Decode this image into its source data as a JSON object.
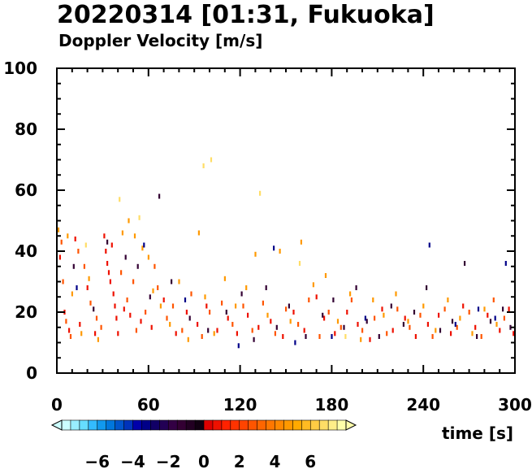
{
  "chart_data": {
    "type": "scatter",
    "title": "20220314 [01:31, Fukuoka]",
    "subtitle": "Doppler Velocity [m/s]",
    "xlabel": "time [s]",
    "ylabel": "",
    "xlim": [
      0,
      300
    ],
    "ylim": [
      0,
      100
    ],
    "xticks": [
      0,
      60,
      120,
      180,
      240,
      300
    ],
    "yticks": [
      0,
      20,
      40,
      60,
      80,
      100
    ],
    "grid": false,
    "colorbar": {
      "label_ticks": [
        "−6",
        "−4",
        "−2",
        "0",
        "2",
        "4",
        "6"
      ],
      "tick_values": [
        -6,
        -4,
        -2,
        0,
        2,
        4,
        6
      ],
      "range": [
        -8,
        8
      ],
      "levels": 32,
      "negative_colors": [
        "#ccffff",
        "#99eeff",
        "#66ddff",
        "#33bbff",
        "#1199ee",
        "#0077dd",
        "#0055cc",
        "#0033bb",
        "#0000aa",
        "#000088",
        "#110066",
        "#220055",
        "#330044",
        "#330033",
        "#220022",
        "#110011"
      ],
      "positive_colors": [
        "#dd0000",
        "#ee1100",
        "#ff2200",
        "#ff3300",
        "#ff4400",
        "#ff5500",
        "#ff6600",
        "#ff7700",
        "#ff8800",
        "#ff9900",
        "#ffaa00",
        "#ffbb22",
        "#ffcc44",
        "#ffdd66",
        "#ffee88",
        "#ffffaa"
      ]
    },
    "series": [
      {
        "velocity_range": "positive, 0 to 2 m/s (red)",
        "points": [
          [
            2,
            38
          ],
          [
            5,
            20
          ],
          [
            8,
            14
          ],
          [
            12,
            44
          ],
          [
            15,
            16
          ],
          [
            20,
            28
          ],
          [
            25,
            13
          ],
          [
            31,
            45
          ],
          [
            32,
            40
          ],
          [
            33,
            36
          ],
          [
            34,
            33
          ],
          [
            35,
            30
          ],
          [
            36,
            42
          ],
          [
            37,
            26
          ],
          [
            38,
            22
          ],
          [
            39,
            18
          ],
          [
            40,
            13
          ],
          [
            44,
            21
          ],
          [
            48,
            19
          ],
          [
            55,
            17
          ],
          [
            62,
            15
          ],
          [
            70,
            24
          ],
          [
            78,
            13
          ],
          [
            85,
            20
          ],
          [
            92,
            16
          ],
          [
            98,
            22
          ],
          [
            105,
            14
          ],
          [
            112,
            18
          ],
          [
            118,
            13
          ],
          [
            125,
            19
          ],
          [
            132,
            15
          ],
          [
            140,
            17
          ],
          [
            148,
            12
          ],
          [
            155,
            20
          ],
          [
            162,
            14
          ],
          [
            170,
            25
          ],
          [
            175,
            18
          ],
          [
            182,
            13
          ],
          [
            190,
            20
          ],
          [
            197,
            16
          ],
          [
            205,
            11
          ],
          [
            213,
            21
          ],
          [
            220,
            14
          ],
          [
            228,
            18
          ],
          [
            235,
            12
          ],
          [
            243,
            16
          ],
          [
            250,
            19
          ],
          [
            258,
            13
          ],
          [
            266,
            22
          ],
          [
            274,
            15
          ],
          [
            282,
            19
          ],
          [
            290,
            14
          ],
          [
            296,
            21
          ],
          [
            299,
            13
          ]
        ]
      },
      {
        "velocity_range": "positive, 2 to 4 m/s (orange-red)",
        "points": [
          [
            3,
            43
          ],
          [
            4,
            30
          ],
          [
            6,
            17
          ],
          [
            9,
            12
          ],
          [
            14,
            40
          ],
          [
            18,
            35
          ],
          [
            22,
            23
          ],
          [
            26,
            18
          ],
          [
            29,
            15
          ],
          [
            42,
            33
          ],
          [
            46,
            24
          ],
          [
            50,
            30
          ],
          [
            52,
            14
          ],
          [
            58,
            20
          ],
          [
            64,
            35
          ],
          [
            66,
            28
          ],
          [
            72,
            18
          ],
          [
            76,
            22
          ],
          [
            82,
            14
          ],
          [
            88,
            26
          ],
          [
            95,
            12
          ],
          [
            100,
            20
          ],
          [
            108,
            23
          ],
          [
            115,
            16
          ],
          [
            122,
            22
          ],
          [
            128,
            14
          ],
          [
            135,
            23
          ],
          [
            143,
            13
          ],
          [
            150,
            21
          ],
          [
            158,
            16
          ],
          [
            165,
            24
          ],
          [
            172,
            12
          ],
          [
            178,
            20
          ],
          [
            186,
            15
          ],
          [
            193,
            24
          ],
          [
            200,
            14
          ],
          [
            208,
            18
          ],
          [
            216,
            13
          ],
          [
            223,
            21
          ],
          [
            231,
            15
          ],
          [
            238,
            19
          ],
          [
            246,
            12
          ],
          [
            254,
            21
          ],
          [
            262,
            15
          ],
          [
            270,
            20
          ],
          [
            278,
            12
          ],
          [
            286,
            24
          ],
          [
            293,
            18
          ]
        ]
      },
      {
        "velocity_range": "positive, 4 to 6 m/s (orange)",
        "points": [
          [
            1,
            47
          ],
          [
            7,
            45
          ],
          [
            10,
            26
          ],
          [
            16,
            13
          ],
          [
            21,
            31
          ],
          [
            27,
            11
          ],
          [
            43,
            46
          ],
          [
            47,
            50
          ],
          [
            51,
            45
          ],
          [
            56,
            41
          ],
          [
            60,
            38
          ],
          [
            63,
            27
          ],
          [
            68,
            22
          ],
          [
            74,
            16
          ],
          [
            80,
            30
          ],
          [
            86,
            11
          ],
          [
            93,
            46
          ],
          [
            97,
            25
          ],
          [
            103,
            13
          ],
          [
            110,
            31
          ],
          [
            117,
            22
          ],
          [
            124,
            28
          ],
          [
            130,
            39
          ],
          [
            138,
            19
          ],
          [
            146,
            40
          ],
          [
            153,
            17
          ],
          [
            160,
            43
          ],
          [
            168,
            29
          ],
          [
            176,
            32
          ],
          [
            184,
            17
          ],
          [
            192,
            26
          ],
          [
            199,
            11
          ],
          [
            207,
            24
          ],
          [
            214,
            19
          ],
          [
            222,
            26
          ],
          [
            230,
            17
          ],
          [
            240,
            22
          ],
          [
            248,
            14
          ],
          [
            256,
            24
          ],
          [
            264,
            18
          ],
          [
            272,
            13
          ],
          [
            280,
            21
          ],
          [
            288,
            16
          ]
        ]
      },
      {
        "velocity_range": "positive, 6 to 8 m/s (yellow)",
        "points": [
          [
            19,
            42
          ],
          [
            41,
            57
          ],
          [
            54,
            51
          ],
          [
            96,
            68
          ],
          [
            101,
            70
          ],
          [
            133,
            59
          ],
          [
            159,
            36
          ],
          [
            189,
            12
          ]
        ]
      },
      {
        "velocity_range": "negative, -2 to 0 m/s (dark purple)",
        "points": [
          [
            11,
            35
          ],
          [
            24,
            21
          ],
          [
            33,
            43
          ],
          [
            45,
            38
          ],
          [
            53,
            35
          ],
          [
            61,
            25
          ],
          [
            67,
            58
          ],
          [
            75,
            30
          ],
          [
            87,
            18
          ],
          [
            99,
            14
          ],
          [
            111,
            20
          ],
          [
            121,
            26
          ],
          [
            129,
            11
          ],
          [
            137,
            28
          ],
          [
            144,
            15
          ],
          [
            152,
            22
          ],
          [
            163,
            12
          ],
          [
            174,
            19
          ],
          [
            181,
            24
          ],
          [
            188,
            15
          ],
          [
            196,
            28
          ],
          [
            203,
            17
          ],
          [
            211,
            12
          ],
          [
            219,
            22
          ],
          [
            227,
            16
          ],
          [
            234,
            20
          ],
          [
            242,
            28
          ],
          [
            251,
            14
          ],
          [
            259,
            17
          ],
          [
            267,
            36
          ],
          [
            275,
            12
          ],
          [
            284,
            17
          ],
          [
            292,
            21
          ],
          [
            297,
            15
          ]
        ]
      },
      {
        "velocity_range": "negative, -4 to -2 m/s (dark blue)",
        "points": [
          [
            13,
            28
          ],
          [
            57,
            42
          ],
          [
            84,
            24
          ],
          [
            119,
            9
          ],
          [
            142,
            41
          ],
          [
            156,
            10
          ],
          [
            180,
            12
          ],
          [
            202,
            18
          ],
          [
            244,
            42
          ],
          [
            261,
            16
          ],
          [
            276,
            21
          ],
          [
            287,
            18
          ],
          [
            294,
            36
          ]
        ]
      }
    ]
  }
}
